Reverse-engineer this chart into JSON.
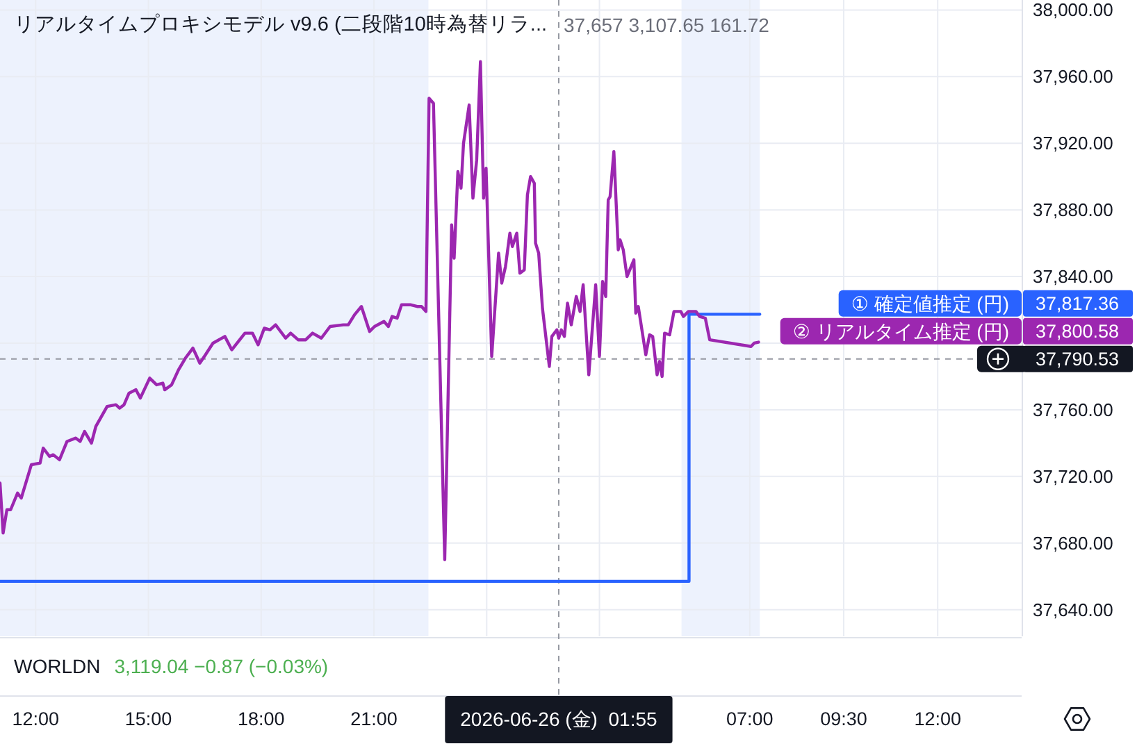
{
  "chart_data": {
    "type": "line",
    "title": "リアルタイムプロキシモデル v9.6 (二段階10時為替リラ...",
    "annotations": [
      "37,657 3,107.65 161.72",
      "WORLDN",
      "3,119.04 −0.87 (−0.03%)",
      "37,817.36",
      "37,800.58"
    ],
    "xlim": [
      "2026-06-25T11:03",
      "2026-06-26T14:14"
    ],
    "xticks": [
      {
        "value": "2026-06-25T12:00",
        "label": "12:00"
      },
      {
        "value": "2026-06-25T15:00",
        "label": "15:00"
      },
      {
        "value": "2026-06-25T18:00",
        "label": "18:00"
      },
      {
        "value": "2026-06-25T21:00",
        "label": "21:00"
      },
      {
        "value": "2026-06-26T00:00",
        "label": null
      },
      {
        "value": "2026-06-26T03:00",
        "label": null
      },
      {
        "value": "2026-06-26T07:00",
        "label": "07:00"
      },
      {
        "value": "2026-06-26T09:30",
        "label": "09:30"
      },
      {
        "value": "2026-06-26T12:00",
        "label": "12:00"
      }
    ],
    "ylim": [
      37624,
      38006
    ],
    "yticks": [
      {
        "value": 37640,
        "label": "37,640.00"
      },
      {
        "value": 37680,
        "label": "37,680.00"
      },
      {
        "value": 37720,
        "label": "37,720.00"
      },
      {
        "value": 37760,
        "label": "37,760.00"
      },
      {
        "value": 37800,
        "label": null
      },
      {
        "value": 37840,
        "label": "37,840.00"
      },
      {
        "value": 37880,
        "label": "37,880.00"
      },
      {
        "value": 37920,
        "label": "37,920.00"
      },
      {
        "value": 37960,
        "label": "37,960.00"
      },
      {
        "value": 38000,
        "label": "38,000.00"
      }
    ],
    "grid": true,
    "bands": [
      {
        "axis": "x",
        "from": "2026-06-25T11:03",
        "to": "2026-06-25T22:27",
        "color": "#edf2fd"
      },
      {
        "axis": "x",
        "from": "2026-06-26T05:11",
        "to": "2026-06-26T07:16",
        "color": "#edf2fd"
      }
    ],
    "ref_lines": [
      {
        "axis": "y",
        "value": 37790.53,
        "label": "37,790.53",
        "color": "#9598a1",
        "line_style": "dashed"
      },
      {
        "axis": "x",
        "value": "2026-06-26T01:55",
        "label": "2026-06-26 (金)  01:55",
        "color": "#9598a1",
        "line_style": "dashed"
      }
    ],
    "series": [
      {
        "name": "① 確定値推定 (円)",
        "type": "step",
        "color": "#2962ff",
        "x": [
          "2026-06-25T11:03",
          "2026-06-26T05:23",
          "2026-06-26T07:16"
        ],
        "values": [
          37657,
          37817.36,
          37817.36
        ]
      },
      {
        "name": "② リアルタイム推定 (円)",
        "color": "#9c27b0",
        "x": [
          "2026-06-25T11:03",
          "2026-06-25T11:08",
          "2026-06-25T11:14",
          "2026-06-25T11:20",
          "2026-06-25T11:31",
          "2026-06-25T11:37",
          "2026-06-25T11:53",
          "2026-06-25T12:07",
          "2026-06-25T12:12",
          "2026-06-25T12:22",
          "2026-06-25T12:28",
          "2026-06-25T12:38",
          "2026-06-25T12:50",
          "2026-06-25T13:04",
          "2026-06-25T13:11",
          "2026-06-25T13:18",
          "2026-06-25T13:29",
          "2026-06-25T13:36",
          "2026-06-25T13:54",
          "2026-06-25T14:08",
          "2026-06-25T14:14",
          "2026-06-25T14:21",
          "2026-06-25T14:29",
          "2026-06-25T14:40",
          "2026-06-25T14:47",
          "2026-06-25T15:02",
          "2026-06-25T15:13",
          "2026-06-25T15:23",
          "2026-06-25T15:26",
          "2026-06-25T15:37",
          "2026-06-25T15:48",
          "2026-06-25T15:59",
          "2026-06-25T16:11",
          "2026-06-25T16:22",
          "2026-06-25T16:31",
          "2026-06-25T16:43",
          "2026-06-25T17:02",
          "2026-06-25T17:13",
          "2026-06-25T17:34",
          "2026-06-25T17:46",
          "2026-06-25T17:55",
          "2026-06-25T18:05",
          "2026-06-25T18:14",
          "2026-06-25T18:23",
          "2026-06-25T18:39",
          "2026-06-25T18:47",
          "2026-06-25T18:59",
          "2026-06-25T19:11",
          "2026-06-25T19:22",
          "2026-06-25T19:36",
          "2026-06-25T19:50",
          "2026-06-25T20:11",
          "2026-06-25T20:19",
          "2026-06-25T20:29",
          "2026-06-25T20:40",
          "2026-06-25T20:53",
          "2026-06-25T21:01",
          "2026-06-25T21:16",
          "2026-06-25T21:23",
          "2026-06-25T21:29",
          "2026-06-25T21:37",
          "2026-06-25T21:44",
          "2026-06-25T21:59",
          "2026-06-25T22:09",
          "2026-06-25T22:16",
          "2026-06-25T22:23",
          "2026-06-25T22:28",
          "2026-06-25T22:35",
          "2026-06-25T22:53",
          "2026-06-25T23:04",
          "2026-06-25T23:08",
          "2026-06-25T23:14",
          "2026-06-25T23:19",
          "2026-06-25T23:23",
          "2026-06-25T23:32",
          "2026-06-25T23:38",
          "2026-06-25T23:44",
          "2026-06-25T23:50",
          "2026-06-25T23:55",
          "2026-06-25T23:59",
          "2026-06-26T00:08",
          "2026-06-26T00:19",
          "2026-06-26T00:24",
          "2026-06-26T00:30",
          "2026-06-26T00:37",
          "2026-06-26T00:41",
          "2026-06-26T00:48",
          "2026-06-26T00:53",
          "2026-06-26T01:00",
          "2026-06-26T01:05",
          "2026-06-26T01:10",
          "2026-06-26T01:16",
          "2026-06-26T01:18",
          "2026-06-26T01:23",
          "2026-06-26T01:29",
          "2026-06-26T01:40",
          "2026-06-26T01:44",
          "2026-06-26T01:52",
          "2026-06-26T01:55",
          "2026-06-26T01:59",
          "2026-06-26T02:04",
          "2026-06-26T02:09",
          "2026-06-26T02:15",
          "2026-06-26T02:23",
          "2026-06-26T02:29",
          "2026-06-26T02:34",
          "2026-06-26T02:43",
          "2026-06-26T02:54",
          "2026-06-26T03:00",
          "2026-06-26T03:05",
          "2026-06-26T03:10",
          "2026-06-26T03:14",
          "2026-06-26T03:17",
          "2026-06-26T03:23",
          "2026-06-26T03:30",
          "2026-06-26T03:33",
          "2026-06-26T03:38",
          "2026-06-26T03:44",
          "2026-06-26T03:55",
          "2026-06-26T03:58",
          "2026-06-26T04:02",
          "2026-06-26T04:14",
          "2026-06-26T04:20",
          "2026-06-26T04:25",
          "2026-06-26T04:32",
          "2026-06-26T04:36",
          "2026-06-26T04:40",
          "2026-06-26T04:44",
          "2026-06-26T04:52",
          "2026-06-26T04:59",
          "2026-06-26T05:10",
          "2026-06-26T05:14",
          "2026-06-26T05:22",
          "2026-06-26T05:34",
          "2026-06-26T05:40",
          "2026-06-26T05:49",
          "2026-06-26T05:56",
          "2026-06-26T07:02",
          "2026-06-26T07:07",
          "2026-06-26T07:14"
        ],
        "values": [
          37716,
          37686,
          37700,
          37700,
          37710,
          37707,
          37727,
          37728,
          37737,
          37732,
          37733,
          37730,
          37741,
          37743,
          37741,
          37747,
          37740,
          37750,
          37762,
          37763,
          37761,
          37763,
          37770,
          37772,
          37767,
          37779,
          37775,
          37776,
          37772,
          37775,
          37784,
          37791,
          37797,
          37788,
          37793,
          37800,
          37804,
          37796,
          37806,
          37806,
          37799,
          37809,
          37808,
          37811,
          37803,
          37806,
          37802,
          37802,
          37806,
          37803,
          37810,
          37811,
          37811,
          37817,
          37822,
          37807,
          37810,
          37813,
          37810,
          37816,
          37815,
          37823,
          37823,
          37822,
          37822,
          37819,
          37947,
          37944,
          37670,
          37871,
          37851,
          37903,
          37893,
          37920,
          37943,
          37887,
          37910,
          37969,
          37887,
          37905,
          37792,
          37854,
          37836,
          37846,
          37866,
          37858,
          37866,
          37842,
          37844,
          37889,
          37900,
          37896,
          37860,
          37854,
          37821,
          37786,
          37804,
          37808,
          37803,
          37808,
          37804,
          37824,
          37811,
          37828,
          37819,
          37835,
          37781,
          37835,
          37792,
          37837,
          37828,
          37886,
          37888,
          37915,
          37856,
          37862,
          37856,
          37840,
          37850,
          37818,
          37822,
          37793,
          37805,
          37804,
          37781,
          37789,
          37780,
          37806,
          37805,
          37819,
          37819,
          37816,
          37819,
          37819,
          37816,
          37815,
          37802,
          37798,
          37800,
          37800.58
        ]
      }
    ]
  }
}
